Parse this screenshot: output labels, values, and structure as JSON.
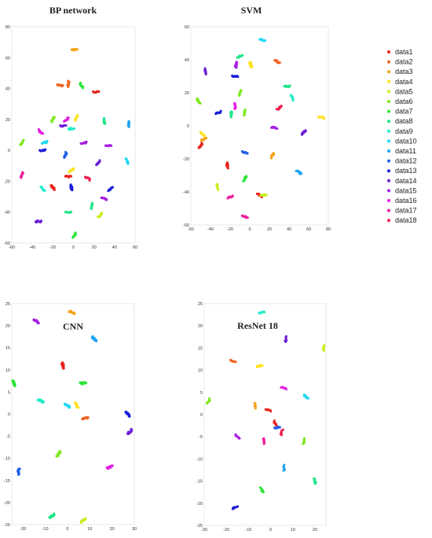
{
  "chart_data": [
    {
      "type": "scatter",
      "title": "BP  network",
      "xlim": [
        -60,
        60
      ],
      "ylim": [
        -60,
        80
      ],
      "xticks": [
        -60,
        -40,
        -20,
        0,
        20,
        40,
        60
      ],
      "yticks": [
        -60,
        -40,
        -20,
        0,
        20,
        40,
        60,
        80
      ],
      "clusters": [
        {
          "series": "data1",
          "points": [
            [
              22,
              38
            ],
            [
              -5,
              -17
            ],
            [
              -20,
              -24
            ]
          ]
        },
        {
          "series": "data2",
          "points": [
            [
              -13,
              42
            ],
            [
              -5,
              43
            ]
          ]
        },
        {
          "series": "data3",
          "points": [
            [
              1,
              65
            ]
          ]
        },
        {
          "series": "data4",
          "points": [
            [
              3,
              21
            ],
            [
              -2,
              -13
            ]
          ]
        },
        {
          "series": "data5",
          "points": [
            [
              26,
              -42
            ]
          ]
        },
        {
          "series": "data6",
          "points": [
            [
              -20,
              20
            ],
            [
              -50,
              5
            ]
          ]
        },
        {
          "series": "data7",
          "points": [
            [
              8,
              42
            ],
            [
              1,
              -55
            ]
          ]
        },
        {
          "series": "data8",
          "points": [
            [
              -5,
              -40
            ],
            [
              30,
              19
            ],
            [
              18,
              -36
            ]
          ]
        },
        {
          "series": "data9",
          "points": [
            [
              -30,
              -25
            ],
            [
              -2,
              14
            ]
          ]
        },
        {
          "series": "data10",
          "points": [
            [
              -28,
              5
            ],
            [
              52,
              -7
            ]
          ]
        },
        {
          "series": "data11",
          "points": [
            [
              54,
              17
            ]
          ]
        },
        {
          "series": "data12",
          "points": [
            [
              -8,
              -3
            ]
          ]
        },
        {
          "series": "data13",
          "points": [
            [
              -30,
              0
            ],
            [
              36,
              -25
            ],
            [
              -2,
              -24
            ]
          ]
        },
        {
          "series": "data14",
          "points": [
            [
              -10,
              16
            ],
            [
              24,
              -8
            ],
            [
              -34,
              -46
            ]
          ]
        },
        {
          "series": "data15",
          "points": [
            [
              10,
              5
            ],
            [
              34,
              3
            ],
            [
              30,
              -31
            ]
          ]
        },
        {
          "series": "data16",
          "points": [
            [
              -7,
              20
            ],
            [
              -32,
              12
            ]
          ]
        },
        {
          "series": "data17",
          "points": [
            [
              -50,
              -16
            ]
          ]
        },
        {
          "series": "data18",
          "points": [
            [
              14,
              -18
            ]
          ]
        }
      ]
    },
    {
      "type": "scatter",
      "title": "SVM",
      "xlim": [
        -60,
        80
      ],
      "ylim": [
        -60,
        60
      ],
      "xticks": [
        -60,
        -40,
        -20,
        0,
        20,
        40,
        60,
        80
      ],
      "yticks": [
        -60,
        -40,
        -20,
        0,
        20,
        40,
        60
      ],
      "clusters": [
        {
          "series": "data1",
          "points": [
            [
              -50,
              -12
            ],
            [
              -23,
              -24
            ],
            [
              10,
              -42
            ]
          ]
        },
        {
          "series": "data2",
          "points": [
            [
              28,
              39
            ]
          ]
        },
        {
          "series": "data3",
          "points": [
            [
              23,
              -18
            ],
            [
              -47,
              -8
            ]
          ]
        },
        {
          "series": "data4",
          "points": [
            [
              73,
              5
            ],
            [
              1,
              37
            ],
            [
              -48,
              -5
            ]
          ]
        },
        {
          "series": "data5",
          "points": [
            [
              14,
              -42
            ],
            [
              -33,
              -37
            ]
          ]
        },
        {
          "series": "data6",
          "points": [
            [
              -52,
              15
            ],
            [
              -5,
              8
            ],
            [
              -10,
              20
            ]
          ]
        },
        {
          "series": "data7",
          "points": [
            [
              -5,
              -32
            ]
          ]
        },
        {
          "series": "data8",
          "points": [
            [
              -10,
              42
            ],
            [
              -19,
              7
            ],
            [
              38,
              24
            ]
          ]
        },
        {
          "series": "data9",
          "points": [
            [
              43,
              17
            ]
          ]
        },
        {
          "series": "data10",
          "points": [
            [
              13,
              52
            ]
          ]
        },
        {
          "series": "data11",
          "points": [
            [
              50,
              -28
            ]
          ]
        },
        {
          "series": "data12",
          "points": [
            [
              -5,
              -16
            ]
          ]
        },
        {
          "series": "data13",
          "points": [
            [
              -32,
              8
            ],
            [
              -15,
              30
            ]
          ]
        },
        {
          "series": "data14",
          "points": [
            [
              -45,
              33
            ],
            [
              55,
              -4
            ]
          ]
        },
        {
          "series": "data15",
          "points": [
            [
              25,
              -1
            ],
            [
              -14,
              37
            ]
          ]
        },
        {
          "series": "data16",
          "points": [
            [
              -15,
              12
            ]
          ]
        },
        {
          "series": "data17",
          "points": [
            [
              -5,
              -55
            ],
            [
              -20,
              -43
            ]
          ]
        },
        {
          "series": "data18",
          "points": [
            [
              30,
              11
            ]
          ]
        }
      ]
    },
    {
      "type": "scatter",
      "title": "CNN",
      "xlim": [
        -25,
        30
      ],
      "ylim": [
        -25,
        25
      ],
      "xticks": [
        -20,
        -10,
        0,
        10,
        20,
        30
      ],
      "yticks": [
        -25,
        -20,
        -15,
        -10,
        -5,
        0,
        5,
        10,
        15,
        20,
        25
      ],
      "clusters": [
        {
          "series": "data1",
          "points": [
            [
              -2,
              11
            ]
          ]
        },
        {
          "series": "data2",
          "points": [
            [
              8,
              -1
            ]
          ]
        },
        {
          "series": "data3",
          "points": [
            [
              2,
              23
            ]
          ]
        },
        {
          "series": "data4",
          "points": [
            [
              4,
              2
            ]
          ]
        },
        {
          "series": "data5",
          "points": [
            [
              7,
              -24
            ]
          ]
        },
        {
          "series": "data6",
          "points": [
            [
              -4,
              -9
            ]
          ]
        },
        {
          "series": "data7",
          "points": [
            [
              -24,
              7
            ],
            [
              7,
              7
            ]
          ]
        },
        {
          "series": "data8",
          "points": [
            [
              -7,
              -23
            ]
          ]
        },
        {
          "series": "data9",
          "points": [
            [
              -12,
              3
            ]
          ]
        },
        {
          "series": "data10",
          "points": [
            [
              0,
              2
            ]
          ]
        },
        {
          "series": "data11",
          "points": [
            [
              12,
              17
            ]
          ]
        },
        {
          "series": "data12",
          "points": [
            [
              -22,
              -13
            ]
          ]
        },
        {
          "series": "data13",
          "points": [
            [
              27,
              0
            ]
          ]
        },
        {
          "series": "data14",
          "points": [
            [
              28,
              -4
            ]
          ]
        },
        {
          "series": "data15",
          "points": [
            [
              -14,
              21
            ]
          ]
        },
        {
          "series": "data16",
          "points": [
            [
              19,
              -12
            ]
          ]
        }
      ]
    },
    {
      "type": "scatter",
      "title": "ResNet 18",
      "xlim": [
        -30,
        25
      ],
      "ylim": [
        -25,
        25
      ],
      "xticks": [
        -30,
        -20,
        -10,
        0,
        10,
        20
      ],
      "yticks": [
        -25,
        -20,
        -15,
        -10,
        -5,
        0,
        5,
        10,
        15,
        20,
        25
      ],
      "clusters": [
        {
          "series": "data1",
          "points": [
            [
              -1,
              1
            ],
            [
              2,
              -2
            ]
          ]
        },
        {
          "series": "data2",
          "points": [
            [
              -17,
              12
            ]
          ]
        },
        {
          "series": "data3",
          "points": [
            [
              -7,
              2
            ]
          ]
        },
        {
          "series": "data4",
          "points": [
            [
              -5,
              11
            ]
          ]
        },
        {
          "series": "data5",
          "points": [
            [
              24,
              15
            ]
          ]
        },
        {
          "series": "data6",
          "points": [
            [
              -28,
              3
            ],
            [
              15,
              -6
            ]
          ]
        },
        {
          "series": "data7",
          "points": [
            [
              -4,
              -17
            ]
          ]
        },
        {
          "series": "data8",
          "points": [
            [
              20,
              -15
            ]
          ]
        },
        {
          "series": "data9",
          "points": [
            [
              -4,
              23
            ]
          ]
        },
        {
          "series": "data10",
          "points": [
            [
              16,
              4
            ]
          ]
        },
        {
          "series": "data11",
          "points": [
            [
              6,
              -12
            ]
          ]
        },
        {
          "series": "data12",
          "points": [
            [
              3,
              -3
            ]
          ]
        },
        {
          "series": "data13",
          "points": [
            [
              -16,
              -21
            ]
          ]
        },
        {
          "series": "data14",
          "points": [
            [
              7,
              17
            ]
          ]
        },
        {
          "series": "data15",
          "points": [
            [
              -15,
              -5
            ]
          ]
        },
        {
          "series": "data16",
          "points": [
            [
              6,
              6
            ]
          ]
        },
        {
          "series": "data17",
          "points": [
            [
              -3,
              -6
            ]
          ]
        },
        {
          "series": "data18",
          "points": [
            [
              5,
              -4
            ]
          ]
        }
      ]
    }
  ],
  "legend": {
    "placement": "right",
    "entries": [
      {
        "name": "data1",
        "color": "#e8231c"
      },
      {
        "name": "data2",
        "color": "#f2621e"
      },
      {
        "name": "data3",
        "color": "#f5a31c"
      },
      {
        "name": "data4",
        "color": "#ffe11a"
      },
      {
        "name": "data5",
        "color": "#c9ef1e"
      },
      {
        "name": "data6",
        "color": "#7ee81d"
      },
      {
        "name": "data7",
        "color": "#2ee43a"
      },
      {
        "name": "data8",
        "color": "#22e58a"
      },
      {
        "name": "data9",
        "color": "#22ecc8"
      },
      {
        "name": "data10",
        "color": "#22d8f2"
      },
      {
        "name": "data11",
        "color": "#1fa3ef"
      },
      {
        "name": "data12",
        "color": "#1e5fe8"
      },
      {
        "name": "data13",
        "color": "#1d1fd8"
      },
      {
        "name": "data14",
        "color": "#6b1fd6"
      },
      {
        "name": "data15",
        "color": "#a51fe0"
      },
      {
        "name": "data16",
        "color": "#e21fe3"
      },
      {
        "name": "data17",
        "color": "#ee1f9c"
      },
      {
        "name": "data18",
        "color": "#ee1f50"
      }
    ]
  }
}
